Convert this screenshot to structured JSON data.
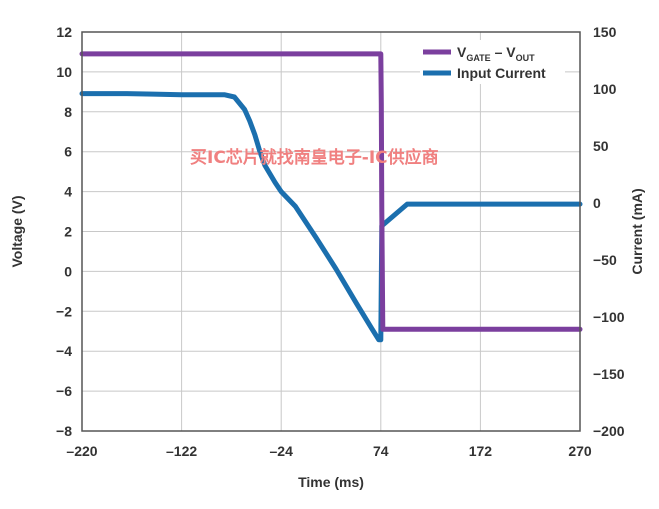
{
  "chart_data": {
    "type": "line",
    "xlabel": "Time (ms)",
    "ylabel_left": "Voltage (V)",
    "ylabel_right": "Current (mA)",
    "x_ticks": [
      -220,
      -122,
      -24,
      74,
      172,
      270
    ],
    "x_tick_labels": [
      "–220",
      "–122",
      "–24",
      "74",
      "172",
      "270"
    ],
    "xlim": [
      -220,
      270
    ],
    "y_left_ticks": [
      12,
      10,
      8,
      6,
      4,
      2,
      0,
      -2,
      -4,
      -6,
      -8
    ],
    "y_left_tick_labels": [
      "12",
      "10",
      "8",
      "6",
      "4",
      "2",
      "0",
      "−2",
      "−4",
      "−6",
      "−8"
    ],
    "ylim_left": [
      -8,
      12
    ],
    "y_right_ticks": [
      150,
      100,
      50,
      0,
      -50,
      -100,
      -150,
      -200
    ],
    "y_right_tick_labels": [
      "150",
      "100",
      "50",
      "0",
      "−50",
      "−100",
      "−150",
      "−200"
    ],
    "ylim_right": [
      -200,
      150
    ],
    "grid": true,
    "legend_position": "top-right",
    "series": [
      {
        "name_main": "V",
        "name_sub1": "GATE",
        "name_mid": " – V",
        "name_sub2": "OUT",
        "axis": "left",
        "color": "#7B3F9E",
        "x": [
          -220,
          -150,
          -80,
          -24,
          30,
          73,
          74,
          74.5,
          75,
          76,
          100,
          172,
          270
        ],
        "y": [
          10.9,
          10.9,
          10.9,
          10.9,
          10.9,
          10.9,
          10.9,
          8.4,
          3.0,
          -2.9,
          -2.9,
          -2.9,
          -2.9
        ]
      },
      {
        "name": "Input Current",
        "axis": "right",
        "color": "#1B6FAE",
        "x": [
          -220,
          -180,
          -150,
          -122,
          -100,
          -80,
          -70,
          -60,
          -55,
          -50,
          -45,
          -40,
          -30,
          -24,
          -10,
          10,
          30,
          50,
          65,
          72,
          74,
          75,
          100,
          172,
          270
        ],
        "y": [
          96,
          96,
          95.5,
          95,
          95,
          95,
          93,
          82,
          72,
          60,
          45,
          33,
          18,
          10,
          -3,
          -30,
          -58,
          -88,
          -110,
          -120,
          -120,
          -20,
          -1,
          -1,
          -1
        ]
      }
    ],
    "watermark": "买IC芯片就找南皇电子-IC供应商"
  }
}
